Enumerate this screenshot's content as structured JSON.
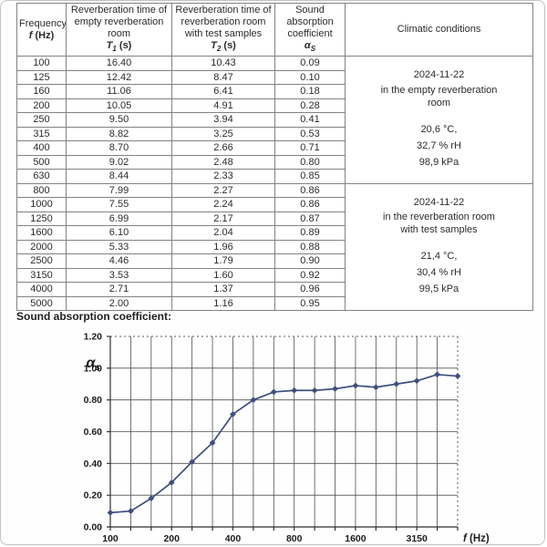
{
  "table": {
    "columns": [
      {
        "title_lines": [
          "Frequency"
        ],
        "symbol": "f",
        "sub": "",
        "unit": "(Hz)"
      },
      {
        "title_lines": [
          "Reverberation time of",
          "empty reverberation",
          "room"
        ],
        "symbol": "T",
        "sub": "1",
        "unit": "(s)"
      },
      {
        "title_lines": [
          "Reverberation time of",
          "reverberation room",
          "with test samples"
        ],
        "symbol": "T",
        "sub": "2",
        "unit": "(s)"
      },
      {
        "title_lines": [
          "Sound",
          "absorption",
          "coefficient"
        ],
        "symbol": "α",
        "sub": "S",
        "unit": ""
      },
      {
        "title_lines": [
          "Climatic conditions"
        ],
        "symbol": "",
        "sub": "",
        "unit": ""
      }
    ],
    "rows": [
      {
        "f": "100",
        "t1": "16.40",
        "t2": "10.43",
        "alpha": "0.09"
      },
      {
        "f": "125",
        "t1": "12.42",
        "t2": "8.47",
        "alpha": "0.10"
      },
      {
        "f": "160",
        "t1": "11.06",
        "t2": "6.41",
        "alpha": "0.18"
      },
      {
        "f": "200",
        "t1": "10.05",
        "t2": "4.91",
        "alpha": "0.28"
      },
      {
        "f": "250",
        "t1": "9.50",
        "t2": "3.94",
        "alpha": "0.41"
      },
      {
        "f": "315",
        "t1": "8.82",
        "t2": "3.25",
        "alpha": "0.53"
      },
      {
        "f": "400",
        "t1": "8.70",
        "t2": "2.66",
        "alpha": "0.71"
      },
      {
        "f": "500",
        "t1": "9.02",
        "t2": "2.48",
        "alpha": "0.80"
      },
      {
        "f": "630",
        "t1": "8.44",
        "t2": "2.33",
        "alpha": "0.85"
      },
      {
        "f": "800",
        "t1": "7.99",
        "t2": "2.27",
        "alpha": "0.86"
      },
      {
        "f": "1000",
        "t1": "7.55",
        "t2": "2.24",
        "alpha": "0.86"
      },
      {
        "f": "1250",
        "t1": "6.99",
        "t2": "2.17",
        "alpha": "0.87"
      },
      {
        "f": "1600",
        "t1": "6.10",
        "t2": "2.04",
        "alpha": "0.89"
      },
      {
        "f": "2000",
        "t1": "5.33",
        "t2": "1.96",
        "alpha": "0.88"
      },
      {
        "f": "2500",
        "t1": "4.46",
        "t2": "1.79",
        "alpha": "0.90"
      },
      {
        "f": "3150",
        "t1": "3.53",
        "t2": "1.60",
        "alpha": "0.92"
      },
      {
        "f": "4000",
        "t1": "2.71",
        "t2": "1.37",
        "alpha": "0.96"
      },
      {
        "f": "5000",
        "t1": "2.00",
        "t2": "1.16",
        "alpha": "0.95"
      }
    ],
    "climatic_blocks": [
      {
        "date": "2024-11-22",
        "location_lines": [
          "in the empty reverberation",
          "room"
        ],
        "temperature": "20,6 °C,",
        "humidity": "32,7 % rH",
        "pressure": "98,9 kPa",
        "span_rows": 9
      },
      {
        "date": "2024-11-22",
        "location_lines": [
          "in the reverberation room",
          "with test samples"
        ],
        "temperature": "21,4 °C,",
        "humidity": "30,4 % rH",
        "pressure": "99,5 kPa",
        "span_rows": 9
      }
    ]
  },
  "chart_section": {
    "title": "Sound absorption coefficient:"
  },
  "chart_data": {
    "type": "line",
    "title": "",
    "x": [
      100,
      125,
      160,
      200,
      250,
      315,
      400,
      500,
      630,
      800,
      1000,
      1250,
      1600,
      2000,
      2500,
      3150,
      4000,
      5000
    ],
    "values": [
      0.09,
      0.1,
      0.18,
      0.28,
      0.41,
      0.53,
      0.71,
      0.8,
      0.85,
      0.86,
      0.86,
      0.87,
      0.89,
      0.88,
      0.9,
      0.92,
      0.96,
      0.95
    ],
    "x_scale": "third-octave bands, evenly spaced",
    "x_tick_indices": [
      0,
      3,
      6,
      9,
      12,
      15
    ],
    "x_tick_labels": [
      "100",
      "200",
      "400",
      "800",
      "1600",
      "3150"
    ],
    "y_ticks": [
      0.0,
      0.2,
      0.4,
      0.6,
      0.8,
      1.0,
      1.2
    ],
    "y_tick_labels": [
      "0.00",
      "0.20",
      "0.40",
      "0.60",
      "0.80",
      "1.00",
      "1.20"
    ],
    "ylim": [
      0,
      1.2
    ],
    "ylabel_symbol": "α",
    "ylabel_sub": "S",
    "xlabel_symbol": "f",
    "xlabel_unit": " (Hz)",
    "legend": "none",
    "grid": "on",
    "line_color": "#3e4f7e",
    "marker": "diamond"
  }
}
